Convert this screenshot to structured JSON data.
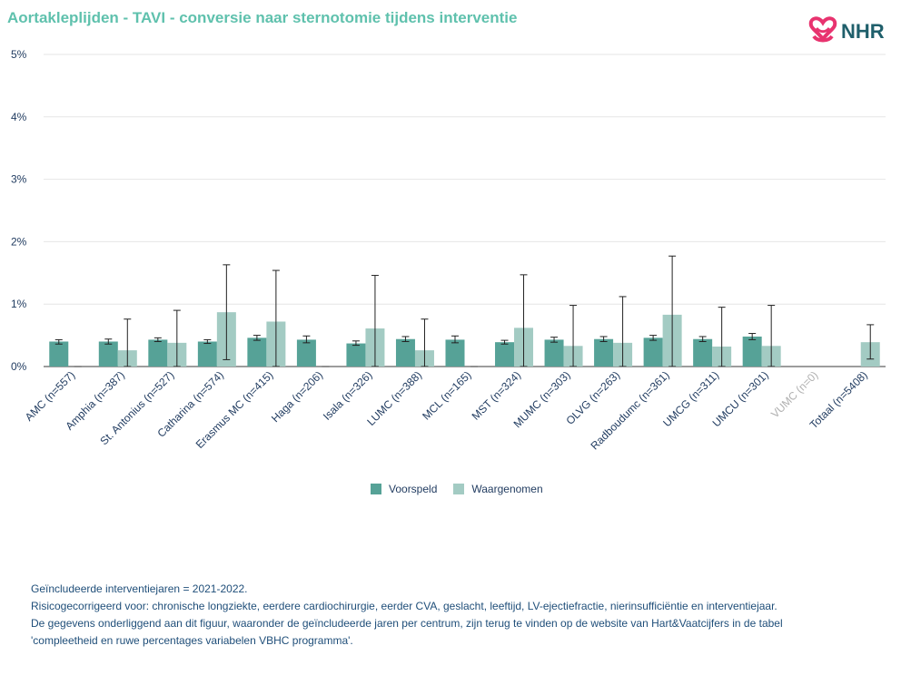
{
  "title": "Aortakleplijden - TAVI - conversie naar sternotomie tijdens interventie",
  "logo": {
    "text": "NHR",
    "icon": "nhr-heart-knot-icon",
    "color": "#e8336f"
  },
  "colors": {
    "title": "#5fc1ad",
    "voorspeld": "#56a297",
    "waargenomen": "#a3cbc3",
    "axis_text": "#1f3a5f",
    "muted_label": "#b0b0b0"
  },
  "legend": {
    "voorspeld": "Voorspeld",
    "waargenomen": "Waargenomen"
  },
  "notes": [
    "Geïncludeerde interventiejaren = 2021-2022.",
    "Risicogecorrigeerd voor: chronische longziekte, eerdere cardiochirurgie, eerder CVA, geslacht, leeftijd, LV-ejectiefractie, nierinsufficiëntie en interventiejaar.",
    "De gegevens onderliggend aan dit figuur, waaronder de geïncludeerde jaren per centrum, zijn terug te vinden op de website van Hart&Vaatcijfers in de tabel",
    "'compleetheid en ruwe percentages variabelen VBHC programma'."
  ],
  "chart_data": {
    "type": "bar",
    "y_unit": "%",
    "ylim": [
      0,
      5
    ],
    "yticks": [
      "0%",
      "1%",
      "2%",
      "3%",
      "4%",
      "5%"
    ],
    "grid": true,
    "legend_position": "bottom",
    "categories": [
      "AMC (n=557)",
      "Amphia (n=387)",
      "St. Antonius (n=527)",
      "Catharina (n=574)",
      "Erasmus MC (n=415)",
      "Haga (n=206)",
      "Isala (n=326)",
      "LUMC (n=388)",
      "MCL (n=165)",
      "MST (n=324)",
      "MUMC (n=303)",
      "OLVG (n=263)",
      "Radboudumc (n=361)",
      "UMCG (n=311)",
      "UMCU (n=301)",
      "VUMC (n=0)",
      "Totaal (n=5408)"
    ],
    "muted_categories": [
      "VUMC (n=0)"
    ],
    "series": [
      {
        "name": "Voorspeld",
        "values": [
          0.4,
          0.4,
          0.43,
          0.4,
          0.46,
          0.43,
          0.37,
          0.44,
          0.43,
          0.39,
          0.43,
          0.44,
          0.46,
          0.44,
          0.48,
          null,
          null
        ],
        "ci_low": [
          0.36,
          0.36,
          0.4,
          0.37,
          0.42,
          0.38,
          0.34,
          0.4,
          0.38,
          0.36,
          0.39,
          0.4,
          0.42,
          0.4,
          0.43,
          null,
          null
        ],
        "ci_high": [
          0.43,
          0.44,
          0.46,
          0.43,
          0.5,
          0.49,
          0.41,
          0.48,
          0.49,
          0.42,
          0.47,
          0.48,
          0.5,
          0.48,
          0.53,
          null,
          null
        ]
      },
      {
        "name": "Waargenomen",
        "values": [
          0.0,
          0.26,
          0.38,
          0.87,
          0.72,
          0.0,
          0.61,
          0.26,
          0.0,
          0.62,
          0.33,
          0.38,
          0.83,
          0.32,
          0.33,
          null,
          0.39
        ],
        "ci_low": [
          0.0,
          0.0,
          0.0,
          0.11,
          0.0,
          0.0,
          0.0,
          0.0,
          0.0,
          0.0,
          0.0,
          0.0,
          0.0,
          0.0,
          0.0,
          null,
          0.12
        ],
        "ci_high": [
          0.0,
          0.76,
          0.9,
          1.63,
          1.54,
          0.0,
          1.46,
          0.76,
          0.0,
          1.47,
          0.98,
          1.12,
          1.77,
          0.95,
          0.98,
          null,
          0.67
        ]
      }
    ]
  }
}
